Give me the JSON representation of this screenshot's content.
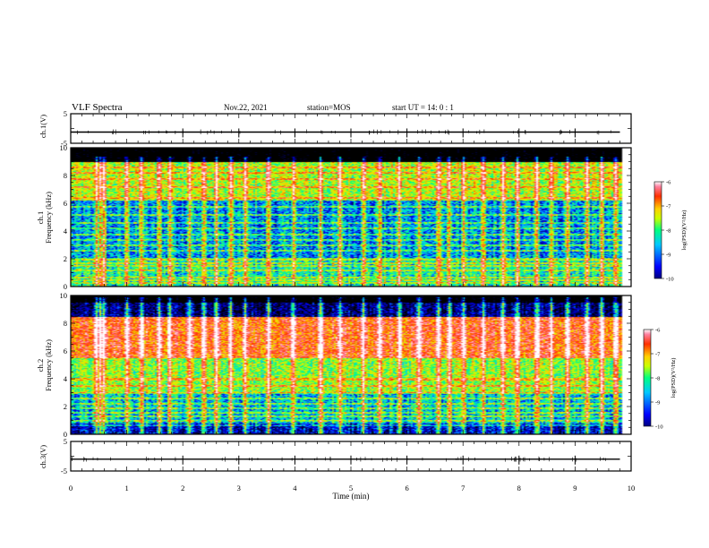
{
  "header": {
    "title": "VLF Spectra",
    "date": "Nov.22, 2021",
    "station": "station=MOS",
    "start_ut": "start  UT =   14: 0  : 1"
  },
  "x_axis": {
    "label": "Time  (min)",
    "ticks": [
      "0",
      "1",
      "2",
      "3",
      "4",
      "5",
      "6",
      "7",
      "8",
      "9",
      "10"
    ]
  },
  "chart_data": [
    {
      "type": "line",
      "panel": "ch1-voltage",
      "ylabel": "ch.1(V)",
      "y_tick_labels": [
        "5",
        "-5"
      ],
      "ylim": [
        -5,
        5
      ],
      "xlim": [
        0,
        10
      ],
      "x": [
        0,
        9.8
      ],
      "values": [
        -1.2,
        -1.2
      ],
      "spike_times_min": [
        2.0,
        3.0,
        4.0,
        5.0,
        6.0,
        7.0,
        8.0,
        9.0
      ]
    },
    {
      "type": "heatmap",
      "panel": "ch1-spectrogram",
      "ylabel": "ch.1 Frequency (kHz)",
      "y_ticks": [
        0,
        2,
        4,
        6,
        8,
        10
      ],
      "ylim": [
        0,
        10
      ],
      "xlim": [
        0,
        10
      ],
      "data_end_min": 9.85,
      "cutoff_khz": 9.0,
      "band_khz": [
        [
          6.2,
          9.0,
          -7.8
        ],
        [
          2.0,
          6.2,
          -8.8
        ],
        [
          0,
          2.0,
          -8.4
        ]
      ],
      "emission_lines_khz": [
        0.3,
        0.5,
        0.7,
        1.2,
        1.5,
        1.7,
        2.0,
        2.6,
        3.0,
        3.4,
        3.8,
        4.2,
        4.6,
        5.2,
        5.8,
        6.4,
        7.2,
        7.8,
        8.2,
        8.6
      ],
      "colorbar": {
        "label": "log(PSD)(V²/Hz)",
        "ticks": [
          "-6",
          "-7",
          "-8",
          "-9",
          "-10"
        ],
        "range": [
          -10,
          -6
        ]
      }
    },
    {
      "type": "heatmap",
      "panel": "ch2-spectrogram",
      "ylabel": "ch.2 Frequency (kHz)",
      "y_ticks": [
        0,
        2,
        4,
        6,
        8,
        10
      ],
      "ylim": [
        0,
        10
      ],
      "xlim": [
        0,
        10
      ],
      "data_end_min": 9.85,
      "cutoff_khz": 9.5,
      "band_khz": [
        [
          5.5,
          8.5,
          -6.9
        ],
        [
          3.0,
          5.5,
          -7.9
        ],
        [
          0.8,
          3.0,
          -8.6
        ],
        [
          0,
          0.8,
          -9.3
        ]
      ],
      "emission_lines_khz": [
        0.7,
        1.0,
        1.3,
        1.6,
        1.9,
        2.2,
        2.6,
        3.0,
        3.5,
        4.0
      ],
      "colorbar": {
        "label": "log(PSD)(V²/Hz)",
        "ticks": [
          "-6",
          "-7",
          "-8",
          "-9",
          "-10"
        ],
        "range": [
          -10,
          -6
        ]
      }
    },
    {
      "type": "line",
      "panel": "ch3-voltage",
      "ylabel": "ch.3(V)",
      "y_tick_labels": [
        "5",
        "-5"
      ],
      "ylim": [
        -5,
        5
      ],
      "xlim": [
        0,
        10
      ],
      "x": [
        0,
        9.8
      ],
      "values": [
        -1.0,
        -1.0
      ],
      "spike_times_min": [
        2.0,
        3.0,
        4.0,
        5.0,
        6.0,
        7.0,
        8.0,
        9.0
      ]
    }
  ],
  "sferic_times_min": [
    0.45,
    0.52,
    0.58,
    1.0,
    1.25,
    1.55,
    1.75,
    2.1,
    2.35,
    2.6,
    2.85,
    3.1,
    3.5,
    3.95,
    4.45,
    4.8,
    5.2,
    5.5,
    5.85,
    6.2,
    6.55,
    6.75,
    7.0,
    7.35,
    7.7,
    7.95,
    8.3,
    8.55,
    8.85,
    9.2,
    9.45,
    9.7
  ],
  "colors": {
    "colormap": [
      "#000000",
      "#000080",
      "#0000ff",
      "#00c8ff",
      "#00ff80",
      "#c8ff00",
      "#ffd000",
      "#ff3000",
      "#ff80a0",
      "#ffffff"
    ],
    "axis": "#000000",
    "background": "#ffffff"
  }
}
